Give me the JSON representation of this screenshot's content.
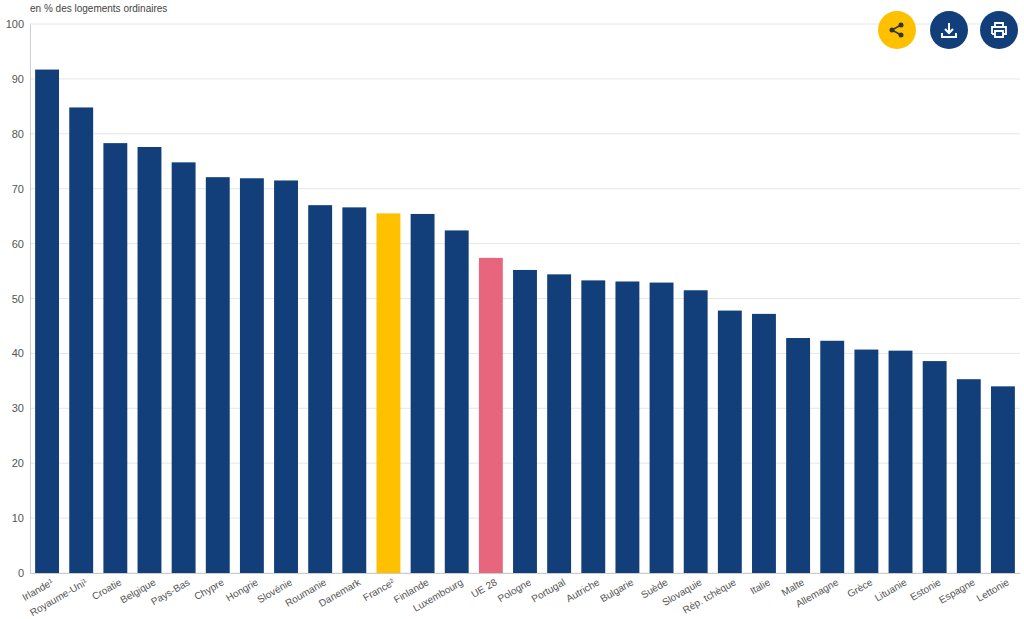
{
  "chart_data": {
    "type": "bar",
    "y_label": "en % des logements ordinaires",
    "categories": [
      "Irlande¹",
      "Royaume-Uni¹",
      "Croatie",
      "Belgique",
      "Pays-Bas",
      "Chypre",
      "Hongrie",
      "Slovénie",
      "Roumanie",
      "Danemark",
      "France²",
      "Finlande",
      "Luxembourg",
      "UE 28",
      "Pologne",
      "Portugal",
      "Autriche",
      "Bulgarie",
      "Suède",
      "Slovaquie",
      "Rép. tchèque",
      "Italie",
      "Malte",
      "Allemagne",
      "Grèce",
      "Lituanie",
      "Estonie",
      "Espagne",
      "Lettonie"
    ],
    "values": [
      91.7,
      84.8,
      78.3,
      77.6,
      74.8,
      72.1,
      71.9,
      71.5,
      67.0,
      66.6,
      65.5,
      65.4,
      62.4,
      57.4,
      55.2,
      54.4,
      53.3,
      53.1,
      52.9,
      51.5,
      47.8,
      47.2,
      42.8,
      42.3,
      40.7,
      40.5,
      38.6,
      35.3,
      34.0
    ],
    "colors": [
      "#123f7a",
      "#123f7a",
      "#123f7a",
      "#123f7a",
      "#123f7a",
      "#123f7a",
      "#123f7a",
      "#123f7a",
      "#123f7a",
      "#123f7a",
      "#ffc000",
      "#123f7a",
      "#123f7a",
      "#e8667d",
      "#123f7a",
      "#123f7a",
      "#123f7a",
      "#123f7a",
      "#123f7a",
      "#123f7a",
      "#123f7a",
      "#123f7a",
      "#123f7a",
      "#123f7a",
      "#123f7a",
      "#123f7a",
      "#123f7a",
      "#123f7a",
      "#123f7a"
    ],
    "ylim": [
      0,
      100
    ],
    "yticks": [
      0,
      10,
      20,
      30,
      40,
      50,
      60,
      70,
      80,
      90,
      100
    ],
    "grid": true
  }
}
